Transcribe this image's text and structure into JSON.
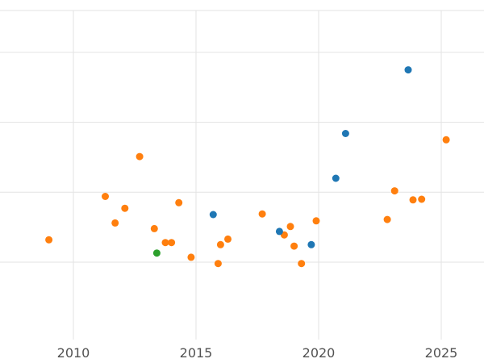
{
  "chart_data": {
    "type": "scatter",
    "title": "",
    "xlabel": "",
    "ylabel": "",
    "x_tick_labels": [
      "2010",
      "2015",
      "2020",
      "2025"
    ],
    "x_ticks": [
      2010,
      2015,
      2020,
      2025
    ],
    "y_gridline_values": [
      0,
      1,
      2,
      3
    ],
    "xlim": [
      2007.0,
      2026.8
    ],
    "ylim": [
      -1.1,
      3.6
    ],
    "grid": true,
    "legend": "none",
    "series": [
      {
        "name": "orange",
        "color": "#ff7f0e",
        "points": [
          [
            2009.0,
            0.32
          ],
          [
            2011.3,
            0.94
          ],
          [
            2011.7,
            0.56
          ],
          [
            2012.1,
            0.77
          ],
          [
            2012.7,
            1.51
          ],
          [
            2013.3,
            0.48
          ],
          [
            2013.75,
            0.28
          ],
          [
            2014.0,
            0.28
          ],
          [
            2014.3,
            0.85
          ],
          [
            2014.8,
            0.07
          ],
          [
            2015.9,
            -0.02
          ],
          [
            2016.0,
            0.25
          ],
          [
            2016.3,
            0.33
          ],
          [
            2017.7,
            0.69
          ],
          [
            2018.6,
            0.39
          ],
          [
            2018.85,
            0.51
          ],
          [
            2019.0,
            0.23
          ],
          [
            2019.3,
            -0.02
          ],
          [
            2019.9,
            0.59
          ],
          [
            2022.8,
            0.61
          ],
          [
            2023.1,
            1.02
          ],
          [
            2023.85,
            0.89
          ],
          [
            2024.2,
            0.9
          ],
          [
            2025.2,
            1.75
          ]
        ]
      },
      {
        "name": "blue",
        "color": "#1f77b4",
        "points": [
          [
            2015.7,
            0.68
          ],
          [
            2018.4,
            0.44
          ],
          [
            2019.7,
            0.25
          ],
          [
            2020.7,
            1.2
          ],
          [
            2021.1,
            1.84
          ],
          [
            2023.65,
            2.75
          ]
        ]
      },
      {
        "name": "green",
        "color": "#2ca02c",
        "points": [
          [
            2013.4,
            0.13
          ]
        ]
      }
    ]
  },
  "colors": {
    "grid": "#e3e3e3",
    "tick_text": "#525252",
    "background": "#ffffff"
  }
}
